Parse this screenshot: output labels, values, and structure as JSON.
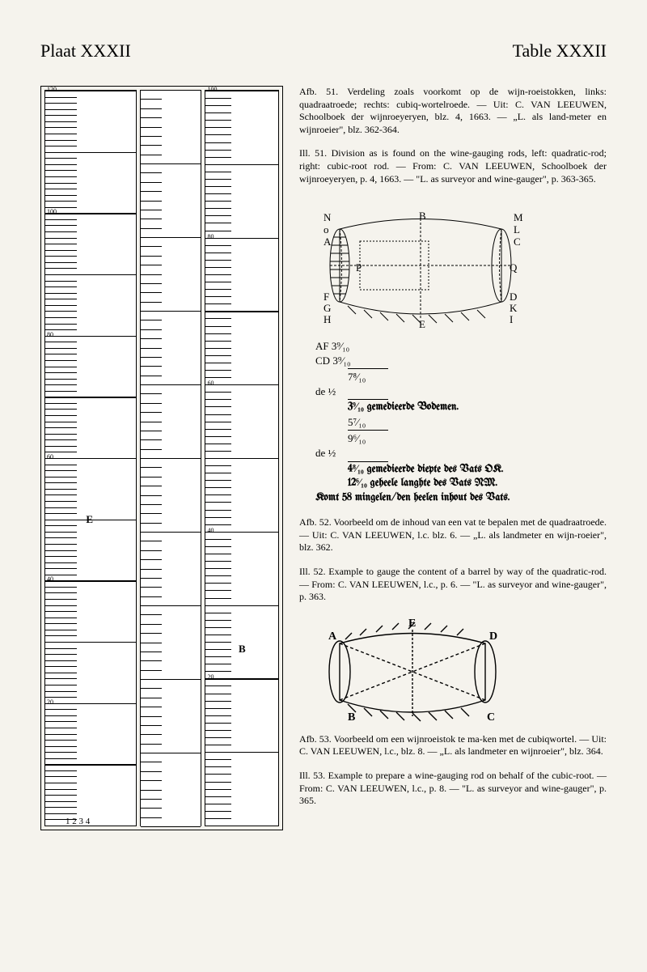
{
  "header": {
    "left": "Plaat XXXII",
    "right": "Table XXXII"
  },
  "captions": {
    "afb51": "Afb. 51. Verdeling zoals voorkomt op de wijn-roeistokken, links: quadraatroede; rechts: cubiq-wortelroede. — Uit: C. VAN LEEUWEN, Schoolboek der wijnroeyeryen, blz. 4, 1663. — „L. als land-meter en wijnroeier\", blz. 362-364.",
    "ill51": "Ill. 51. Division as is found on the wine-gauging rods, left: quadratic-rod; right: cubic-root rod. — From: C. VAN LEEUWEN, Schoolboek der wijnroeyeryen, p. 4, 1663. — \"L. as surveyor and wine-gauger\", p. 363-365.",
    "afb52": "Afb. 52. Voorbeeld om de inhoud van een vat te bepalen met de quadraatroede. — Uit: C. VAN LEEUWEN, l.c. blz. 6. — „L. als landmeter en wijn-roeier\", blz. 362.",
    "ill52": "Ill. 52. Example to gauge the content of a barrel by way of the quadratic-rod. — From: C. VAN LEEUWEN, l.c., p. 6. — \"L. as surveyor and wine-gauger\", p. 363.",
    "afb53": "Afb. 53. Voorbeeld om een wijnroeistok te ma-ken met de cubiqwortel. — Uit: C. VAN LEEUWEN, l.c., blz. 8. — „L. als landmeter en wijnroeier\", blz. 364.",
    "ill53": "Ill. 53. Example to prepare a wine-gauging rod on behalf of the cubic-root. — From: C. VAN LEEUWEN, l.c., p. 8. — \"L. as surveyor and wine-gauger\", p. 365."
  },
  "calc": {
    "af_label": "AF",
    "af_val": "3⁹⁄₁₀",
    "cd_label": "CD",
    "cd_val": "3⁹⁄₁₀",
    "de_label": "de ½",
    "sum1": "7⁸⁄₁₀",
    "half1": "3⁹⁄₁₀ gemedieerde Bodemen.",
    "line_ef": "5⁷⁄₁₀",
    "sum2": "9⁶⁄₁₀",
    "half2": "4⁸⁄₁₀ gemedieerde diepte des Vats OK.",
    "line_final1": "12⁶⁄₁₀ geheele langhte des Vats NM.",
    "line_final2": "Komt 58 mingelen/den heelen inhout des Vats."
  },
  "figure1": {
    "labels": {
      "N": "N",
      "O": "O",
      "A": "A",
      "B": "B",
      "M": "M",
      "L": "L",
      "C": "C",
      "P": "P",
      "Q": "Q",
      "F": "F",
      "G": "G",
      "H": "H",
      "D": "D",
      "K": "K",
      "I": "I",
      "E": "E"
    }
  },
  "figure2": {
    "labels": {
      "A": "A",
      "B": "B",
      "C": "C",
      "D": "D",
      "E": "E"
    }
  },
  "rods": {
    "label_E": "E",
    "label_B": "B",
    "bottom_numbers": "1  2  3  4"
  },
  "colors": {
    "bg": "#f5f3ed",
    "ink": "#000000",
    "paper": "#ffffff"
  }
}
